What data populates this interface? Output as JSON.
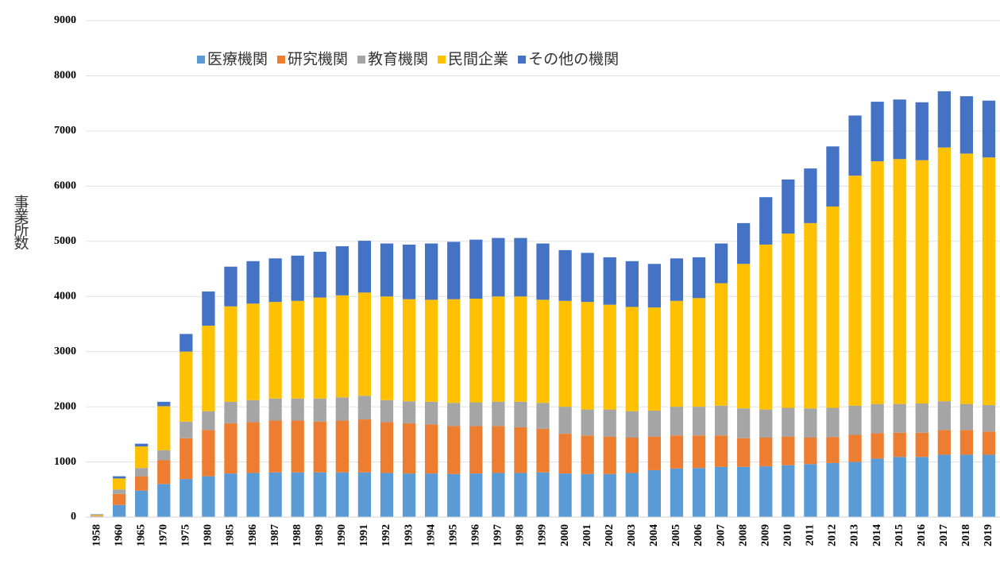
{
  "chart_data": {
    "type": "bar",
    "stacked": true,
    "y_label": "事業所数",
    "categories": [
      "1958",
      "1960",
      "1965",
      "1970",
      "1975",
      "1980",
      "1985",
      "1986",
      "1987",
      "1988",
      "1989",
      "1990",
      "1991",
      "1992",
      "1993",
      "1994",
      "1995",
      "1996",
      "1997",
      "1998",
      "1999",
      "2000",
      "2001",
      "2002",
      "2003",
      "2004",
      "2005",
      "2006",
      "2007",
      "2008",
      "2009",
      "2010",
      "2011",
      "2012",
      "2013",
      "2014",
      "2015",
      "2016",
      "2017",
      "2018",
      "2019"
    ],
    "series": [
      {
        "name": "医療機関",
        "color": "#5b9bd5",
        "values": [
          10,
          220,
          480,
          600,
          690,
          740,
          790,
          800,
          810,
          810,
          810,
          810,
          810,
          800,
          790,
          790,
          780,
          790,
          800,
          800,
          810,
          790,
          780,
          780,
          800,
          850,
          880,
          890,
          910,
          910,
          920,
          940,
          960,
          980,
          1000,
          1060,
          1090,
          1090,
          1130,
          1130,
          1130
        ]
      },
      {
        "name": "研究機関",
        "color": "#ed7d31",
        "values": [
          10,
          200,
          260,
          430,
          740,
          840,
          910,
          920,
          940,
          940,
          920,
          940,
          960,
          920,
          910,
          890,
          870,
          860,
          850,
          830,
          790,
          720,
          700,
          680,
          640,
          610,
          600,
          590,
          570,
          520,
          520,
          520,
          480,
          470,
          490,
          460,
          440,
          440,
          450,
          450,
          420
        ]
      },
      {
        "name": "教育機関",
        "color": "#a5a5a5",
        "values": [
          5,
          80,
          150,
          180,
          300,
          340,
          390,
          400,
          400,
          400,
          420,
          420,
          430,
          400,
          400,
          410,
          420,
          430,
          440,
          460,
          470,
          490,
          470,
          490,
          480,
          470,
          520,
          520,
          540,
          540,
          510,
          520,
          530,
          530,
          530,
          530,
          520,
          530,
          520,
          470,
          480
        ]
      },
      {
        "name": "民間企業",
        "color": "#ffc000",
        "values": [
          15,
          200,
          390,
          800,
          1270,
          1550,
          1730,
          1750,
          1750,
          1770,
          1830,
          1850,
          1870,
          1880,
          1850,
          1850,
          1880,
          1880,
          1910,
          1910,
          1870,
          1920,
          1950,
          1900,
          1890,
          1870,
          1920,
          1970,
          2220,
          2620,
          2990,
          3160,
          3360,
          3650,
          4170,
          4400,
          4440,
          4410,
          4600,
          4540,
          4490
        ]
      },
      {
        "name": "その他の機関",
        "color": "#4472c4",
        "values": [
          10,
          40,
          50,
          80,
          320,
          620,
          720,
          770,
          790,
          820,
          830,
          890,
          940,
          960,
          990,
          1020,
          1040,
          1070,
          1060,
          1060,
          1020,
          920,
          890,
          860,
          830,
          790,
          770,
          740,
          720,
          740,
          860,
          980,
          990,
          1090,
          1090,
          1080,
          1080,
          1050,
          1020,
          1040,
          1030
        ]
      }
    ],
    "ylim": [
      0,
      9000
    ],
    "yticks": [
      0,
      1000,
      2000,
      3000,
      4000,
      5000,
      6000,
      7000,
      8000,
      9000
    ],
    "grid": true,
    "legend": "top"
  }
}
